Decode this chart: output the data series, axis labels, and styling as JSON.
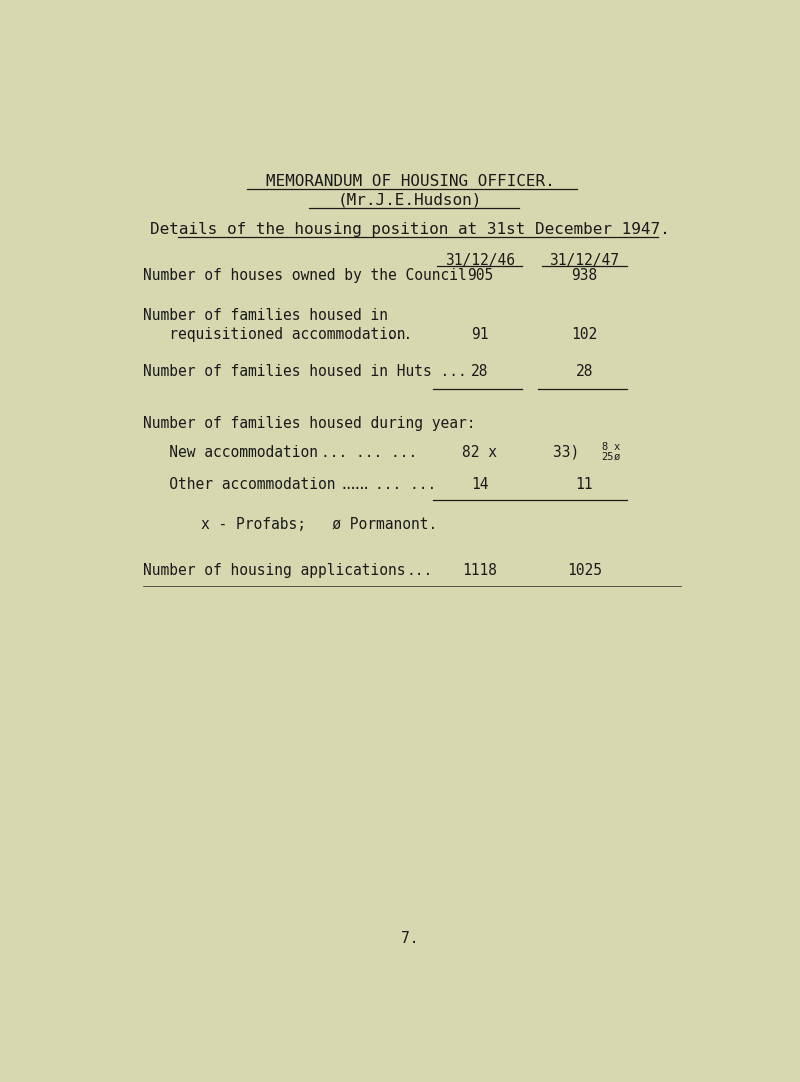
{
  "bg_color": "#d8d8b0",
  "text_color": "#1a1a1a",
  "title1": "MEMORANDUM OF HOUSING OFFICER.",
  "title2": "(Mr.J.E.Hudson)",
  "subtitle": "Details of the housing position at 31st December 1947.",
  "col1_header": "31/12/46",
  "col2_header": "31/12/47",
  "col1_val_houses": "905",
  "col2_val_houses": "938",
  "row1_label1": "Number of houses owned by the Council",
  "row2_label1": "Number of families housed in",
  "row2_label2": "   requisitioned accommodation",
  "row2_dots": "...",
  "row2_v1": "91",
  "row2_v2": "102",
  "row3_label": "Number of families housed in Huts ...",
  "row3_v1": "28",
  "row3_v2": "28",
  "sec2_header": "Number of families housed during year:",
  "new_acc_label": "   New accommodation",
  "new_acc_dots": "... ... ...",
  "new_acc_v1": "82 x",
  "new_acc_v2_prefix": "33) ",
  "new_acc_super1": "8",
  "new_acc_sub1": "25",
  "new_acc_super2": "x",
  "new_acc_sub2": "ø",
  "other_acc_label": "   Other accommodation ...",
  "other_acc_dots": "... ... ...",
  "other_acc_v1": "14",
  "other_acc_v2": "11",
  "footnote": "x - Profabs;   ø Pormanont.",
  "app_label": "Number of housing applications",
  "app_dots": "...",
  "app_v1": "1118",
  "app_v2": "1025",
  "page_num": "7.",
  "font_family": "DejaVu Sans Mono",
  "fs_title": 11.5,
  "fs_body": 10.5,
  "fs_small": 7.5
}
